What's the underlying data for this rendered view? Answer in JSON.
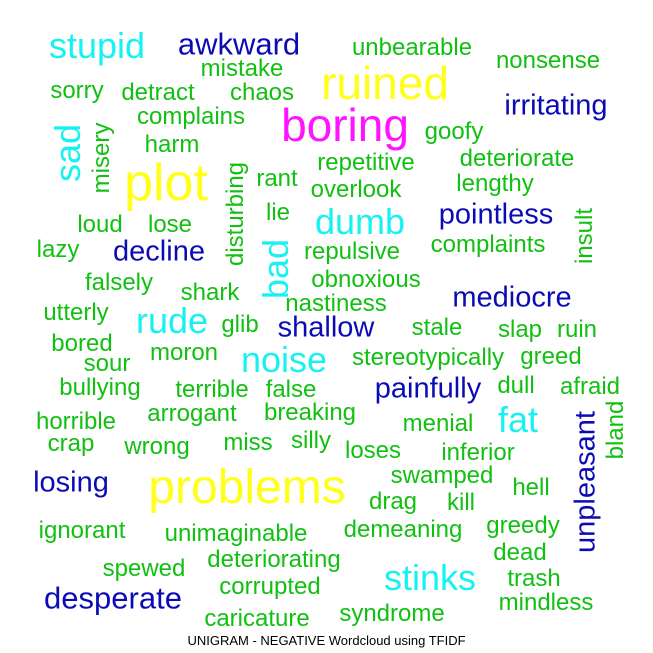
{
  "chart_data": {
    "type": "wordcloud",
    "caption": "UNIGRAM - NEGATIVE Wordcloud using TFIDF",
    "palette": {
      "green": "#11c011",
      "blue": "#0b0bb5",
      "cyan": "#18f1f1",
      "yellow": "#ffff1a",
      "magenta": "#ff14ff"
    },
    "words": [
      {
        "text": "stupid",
        "color": "cyan"
      },
      {
        "text": "awkward",
        "color": "blue"
      },
      {
        "text": "unbearable",
        "color": "green"
      },
      {
        "text": "nonsense",
        "color": "green"
      },
      {
        "text": "mistake",
        "color": "green"
      },
      {
        "text": "ruined",
        "color": "yellow"
      },
      {
        "text": "sorry",
        "color": "green"
      },
      {
        "text": "detract",
        "color": "green"
      },
      {
        "text": "chaos",
        "color": "green"
      },
      {
        "text": "irritating",
        "color": "blue"
      },
      {
        "text": "complains",
        "color": "green"
      },
      {
        "text": "boring",
        "color": "magenta"
      },
      {
        "text": "sad",
        "color": "cyan",
        "rotate": true
      },
      {
        "text": "misery",
        "color": "green",
        "rotate": true
      },
      {
        "text": "goofy",
        "color": "green"
      },
      {
        "text": "harm",
        "color": "green"
      },
      {
        "text": "repetitive",
        "color": "green"
      },
      {
        "text": "deteriorate",
        "color": "green"
      },
      {
        "text": "plot",
        "color": "yellow"
      },
      {
        "text": "disturbing",
        "color": "green",
        "rotate": true
      },
      {
        "text": "rant",
        "color": "green"
      },
      {
        "text": "overlook",
        "color": "green"
      },
      {
        "text": "lengthy",
        "color": "green"
      },
      {
        "text": "lie",
        "color": "green"
      },
      {
        "text": "dumb",
        "color": "cyan"
      },
      {
        "text": "pointless",
        "color": "blue"
      },
      {
        "text": "insult",
        "color": "green",
        "rotate": true
      },
      {
        "text": "loud",
        "color": "green"
      },
      {
        "text": "lose",
        "color": "green"
      },
      {
        "text": "lazy",
        "color": "green"
      },
      {
        "text": "decline",
        "color": "blue"
      },
      {
        "text": "bad",
        "color": "cyan",
        "rotate": true
      },
      {
        "text": "repulsive",
        "color": "green"
      },
      {
        "text": "complaints",
        "color": "green"
      },
      {
        "text": "falsely",
        "color": "green"
      },
      {
        "text": "obnoxious",
        "color": "green"
      },
      {
        "text": "shark",
        "color": "green"
      },
      {
        "text": "nastiness",
        "color": "green"
      },
      {
        "text": "mediocre",
        "color": "blue"
      },
      {
        "text": "utterly",
        "color": "green"
      },
      {
        "text": "rude",
        "color": "cyan"
      },
      {
        "text": "glib",
        "color": "green"
      },
      {
        "text": "shallow",
        "color": "blue"
      },
      {
        "text": "stale",
        "color": "green"
      },
      {
        "text": "slap",
        "color": "green"
      },
      {
        "text": "ruin",
        "color": "green"
      },
      {
        "text": "bored",
        "color": "green"
      },
      {
        "text": "moron",
        "color": "green"
      },
      {
        "text": "noise",
        "color": "cyan"
      },
      {
        "text": "stereotypically",
        "color": "green"
      },
      {
        "text": "greed",
        "color": "green"
      },
      {
        "text": "sour",
        "color": "green"
      },
      {
        "text": "bullying",
        "color": "green"
      },
      {
        "text": "terrible",
        "color": "green"
      },
      {
        "text": "false",
        "color": "green"
      },
      {
        "text": "painfully",
        "color": "blue"
      },
      {
        "text": "dull",
        "color": "green"
      },
      {
        "text": "afraid",
        "color": "green"
      },
      {
        "text": "horrible",
        "color": "green"
      },
      {
        "text": "arrogant",
        "color": "green"
      },
      {
        "text": "breaking",
        "color": "green"
      },
      {
        "text": "menial",
        "color": "green"
      },
      {
        "text": "fat",
        "color": "cyan"
      },
      {
        "text": "unpleasant",
        "color": "blue",
        "rotate": true
      },
      {
        "text": "bland",
        "color": "green",
        "rotate": true
      },
      {
        "text": "crap",
        "color": "green"
      },
      {
        "text": "wrong",
        "color": "green"
      },
      {
        "text": "miss",
        "color": "green"
      },
      {
        "text": "silly",
        "color": "green"
      },
      {
        "text": "loses",
        "color": "green"
      },
      {
        "text": "inferior",
        "color": "green"
      },
      {
        "text": "losing",
        "color": "blue"
      },
      {
        "text": "problems",
        "color": "yellow"
      },
      {
        "text": "swamped",
        "color": "green"
      },
      {
        "text": "hell",
        "color": "green"
      },
      {
        "text": "drag",
        "color": "green"
      },
      {
        "text": "kill",
        "color": "green"
      },
      {
        "text": "ignorant",
        "color": "green"
      },
      {
        "text": "unimaginable",
        "color": "green"
      },
      {
        "text": "demeaning",
        "color": "green"
      },
      {
        "text": "greedy",
        "color": "green"
      },
      {
        "text": "dead",
        "color": "green"
      },
      {
        "text": "spewed",
        "color": "green"
      },
      {
        "text": "deteriorating",
        "color": "green"
      },
      {
        "text": "stinks",
        "color": "cyan"
      },
      {
        "text": "trash",
        "color": "green"
      },
      {
        "text": "desperate",
        "color": "blue"
      },
      {
        "text": "corrupted",
        "color": "green"
      },
      {
        "text": "mindless",
        "color": "green"
      },
      {
        "text": "caricature",
        "color": "green"
      },
      {
        "text": "syndrome",
        "color": "green"
      }
    ]
  }
}
